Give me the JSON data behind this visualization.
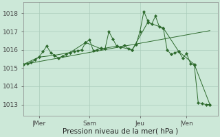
{
  "bg_color": "#cce8d8",
  "grid_color": "#aaccbb",
  "line_color": "#2d6a2d",
  "marker_color": "#2d6a2d",
  "xlabel": "Pression niveau de la mer( hPa )",
  "xlim": [
    0,
    100
  ],
  "ylim": [
    1012.4,
    1018.6
  ],
  "yticks": [
    1013,
    1014,
    1015,
    1016,
    1017,
    1018
  ],
  "xtick_labels": [
    "|Mer",
    "Sam",
    "Jeu",
    "|Ven"
  ],
  "xtick_positions": [
    8,
    34,
    60,
    84
  ],
  "series1_x": [
    0,
    2,
    4,
    6,
    8,
    10,
    12,
    14,
    16,
    18,
    20,
    22,
    24,
    26,
    28,
    30,
    32,
    34,
    36,
    38,
    40,
    42,
    44,
    46,
    48,
    50,
    52,
    54,
    56,
    58,
    60,
    62,
    64,
    66,
    68,
    70,
    72,
    74,
    76,
    78,
    80,
    82,
    84,
    86,
    88,
    90,
    92,
    94,
    96
  ],
  "series1_y": [
    1015.2,
    1015.25,
    1015.3,
    1015.45,
    1015.6,
    1015.9,
    1016.2,
    1015.85,
    1015.7,
    1015.55,
    1015.65,
    1015.75,
    1015.85,
    1015.9,
    1015.95,
    1016.0,
    1016.4,
    1016.55,
    1015.95,
    1016.0,
    1016.1,
    1016.05,
    1017.0,
    1016.6,
    1016.2,
    1016.15,
    1016.25,
    1016.05,
    1016.0,
    1016.3,
    1017.0,
    1018.1,
    1017.6,
    1017.4,
    1017.85,
    1017.25,
    1017.2,
    1016.0,
    1015.75,
    1015.85,
    1015.9,
    1015.55,
    1015.8,
    1015.25,
    1015.15,
    1013.1,
    1013.05,
    1013.0,
    1013.0
  ],
  "series2_x": [
    0,
    8,
    16,
    24,
    32,
    40,
    48,
    56,
    64,
    72,
    80,
    88,
    96
  ],
  "series2_y": [
    1015.2,
    1015.6,
    1015.7,
    1015.85,
    1016.4,
    1016.05,
    1016.2,
    1016.0,
    1017.5,
    1017.2,
    1015.9,
    1015.2,
    1013.0
  ],
  "series3_x": [
    0,
    96
  ],
  "series3_y": [
    1015.2,
    1017.05
  ],
  "xlabel_fontsize": 7.5,
  "tick_fontsize": 6.5
}
